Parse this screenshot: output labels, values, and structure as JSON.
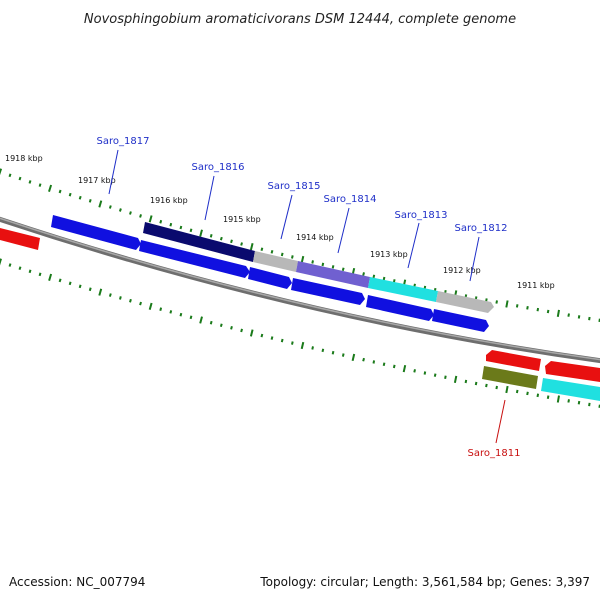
{
  "title": "Novosphingobium aromaticivorans DSM 12444, complete genome",
  "footer": {
    "accession": "Accession: NC_007794",
    "topology": "Topology: circular; Length: 3,561,584 bp; Genes: 3,397"
  },
  "ticks": [
    {
      "label": "1918 kbp"
    },
    {
      "label": "1917 kbp"
    },
    {
      "label": "1916 kbp"
    },
    {
      "label": "1915 kbp"
    },
    {
      "label": "1914 kbp"
    },
    {
      "label": "1913 kbp"
    },
    {
      "label": "1912 kbp"
    },
    {
      "label": "1911 kbp"
    }
  ],
  "gene_labels": [
    {
      "name": "Saro_1817",
      "strand": "top"
    },
    {
      "name": "Saro_1816",
      "strand": "top"
    },
    {
      "name": "Saro_1815",
      "strand": "top"
    },
    {
      "name": "Saro_1814",
      "strand": "top"
    },
    {
      "name": "Saro_1813",
      "strand": "top"
    },
    {
      "name": "Saro_1812",
      "strand": "top"
    },
    {
      "name": "Saro_1811",
      "strand": "bottom"
    }
  ],
  "colors": {
    "backbone": "#808080",
    "tick": "#1a7a1a",
    "cds": "#1010e0",
    "highlight_dark": "#0a0a6e",
    "highlight_purple": "#7060d0",
    "highlight_cyan": "#20e0e0",
    "highlight_grey": "#b8b8b8",
    "reverse": "#e81010",
    "olive": "#6b7a1a"
  }
}
